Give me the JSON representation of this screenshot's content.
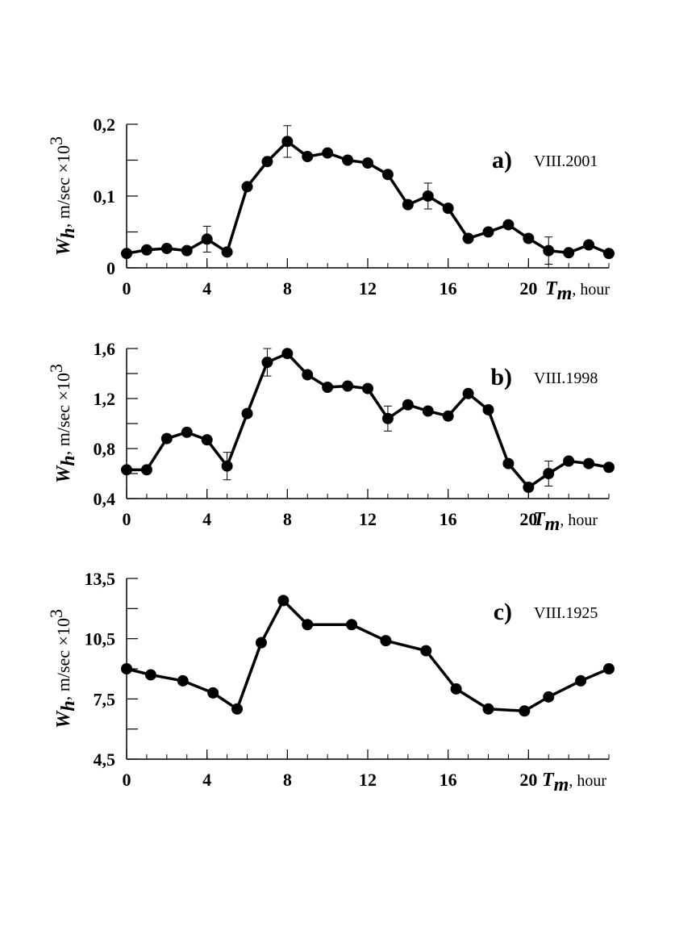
{
  "chart_data": [
    {
      "type": "line",
      "panel_label": "a)",
      "date_label": "VIII.2001",
      "ylabel": {
        "var": "W",
        "sub": "h",
        "unit": ", m/sec ×10",
        "exp": "3"
      },
      "xlabel": {
        "var": "T",
        "sub": "m",
        "unit": ", hour"
      },
      "xlim": [
        0,
        24
      ],
      "ylim": [
        0,
        0.2
      ],
      "xticks": [
        0,
        4,
        8,
        12,
        16,
        20
      ],
      "xtick_labels": [
        "0",
        "4",
        "8",
        "12",
        "16",
        "20"
      ],
      "yticks": [
        0,
        0.1,
        0.2
      ],
      "ytick_labels": [
        "0",
        "0,1",
        "0,2"
      ],
      "yminor": [
        0.05,
        0.15
      ],
      "x": [
        0,
        1,
        2,
        3,
        4,
        5,
        6,
        7,
        8,
        9,
        10,
        11,
        12,
        13,
        14,
        15,
        16,
        17,
        18,
        19,
        20,
        21,
        22,
        23,
        24
      ],
      "y": [
        0.02,
        0.025,
        0.027,
        0.024,
        0.04,
        0.022,
        0.113,
        0.148,
        0.176,
        0.155,
        0.16,
        0.15,
        0.146,
        0.13,
        0.088,
        0.1,
        0.083,
        0.041,
        0.05,
        0.06,
        0.041,
        0.024,
        0.021,
        0.032,
        0.02
      ],
      "errorbars": [
        {
          "x": 4,
          "err": 0.018
        },
        {
          "x": 8,
          "err": 0.022
        },
        {
          "x": 15,
          "err": 0.018
        },
        {
          "x": 21,
          "err": 0.019
        }
      ]
    },
    {
      "type": "line",
      "panel_label": "b)",
      "date_label": "VIII.1998",
      "ylabel": {
        "var": "W",
        "sub": "h",
        "unit": ", m/sec ×10",
        "exp": "3"
      },
      "xlabel": {
        "var": "T",
        "sub": "m",
        "unit": ", hour"
      },
      "xlim": [
        0,
        24
      ],
      "ylim": [
        0.4,
        1.6
      ],
      "xticks": [
        0,
        4,
        8,
        12,
        16,
        20
      ],
      "xtick_labels": [
        "0",
        "4",
        "8",
        "12",
        "16",
        "20"
      ],
      "yticks": [
        0.4,
        0.8,
        1.2,
        1.6
      ],
      "ytick_labels": [
        "0,4",
        "0,8",
        "1,2",
        "1,6"
      ],
      "yminor": [
        0.6,
        1.0,
        1.4
      ],
      "x": [
        0,
        1,
        2,
        3,
        4,
        5,
        6,
        7,
        8,
        9,
        10,
        11,
        12,
        13,
        14,
        15,
        16,
        17,
        18,
        19,
        20,
        21,
        22,
        23,
        24
      ],
      "y": [
        0.63,
        0.63,
        0.88,
        0.93,
        0.87,
        0.66,
        1.08,
        1.49,
        1.56,
        1.39,
        1.29,
        1.3,
        1.28,
        1.04,
        1.15,
        1.1,
        1.06,
        1.24,
        1.11,
        0.68,
        0.49,
        0.6,
        0.7,
        0.68,
        0.65
      ],
      "errorbars": [
        {
          "x": 5,
          "err": 0.11
        },
        {
          "x": 7,
          "err": 0.11
        },
        {
          "x": 13,
          "err": 0.1
        },
        {
          "x": 21,
          "err": 0.1
        }
      ]
    },
    {
      "type": "line",
      "panel_label": "c)",
      "date_label": "VIII.1925",
      "ylabel": {
        "var": "W",
        "sub": "h",
        "unit": ", m/sec ×10",
        "exp": "3"
      },
      "xlabel": {
        "var": "T",
        "sub": "m",
        "unit": ", hour"
      },
      "xlim": [
        0,
        24
      ],
      "ylim": [
        4.5,
        13.5
      ],
      "xticks": [
        0,
        4,
        8,
        12,
        16,
        20
      ],
      "xtick_labels": [
        "0",
        "4",
        "8",
        "12",
        "16",
        "20"
      ],
      "yticks": [
        4.5,
        7.5,
        10.5,
        13.5
      ],
      "ytick_labels": [
        "4,5",
        "7,5",
        "10,5",
        "13,5"
      ],
      "yminor": [
        6.0,
        9.0,
        12.0
      ],
      "x": [
        0,
        1.2,
        2.8,
        4.3,
        5.5,
        6.7,
        7.8,
        9.0,
        11.2,
        12.9,
        14.9,
        16.4,
        18.0,
        19.8,
        21.0,
        22.6,
        24.0
      ],
      "y": [
        9.0,
        8.7,
        8.4,
        7.8,
        7.0,
        10.3,
        12.4,
        11.2,
        11.2,
        10.4,
        9.9,
        8.0,
        7.0,
        6.9,
        7.6,
        8.4,
        9.0
      ],
      "errorbars": []
    }
  ]
}
